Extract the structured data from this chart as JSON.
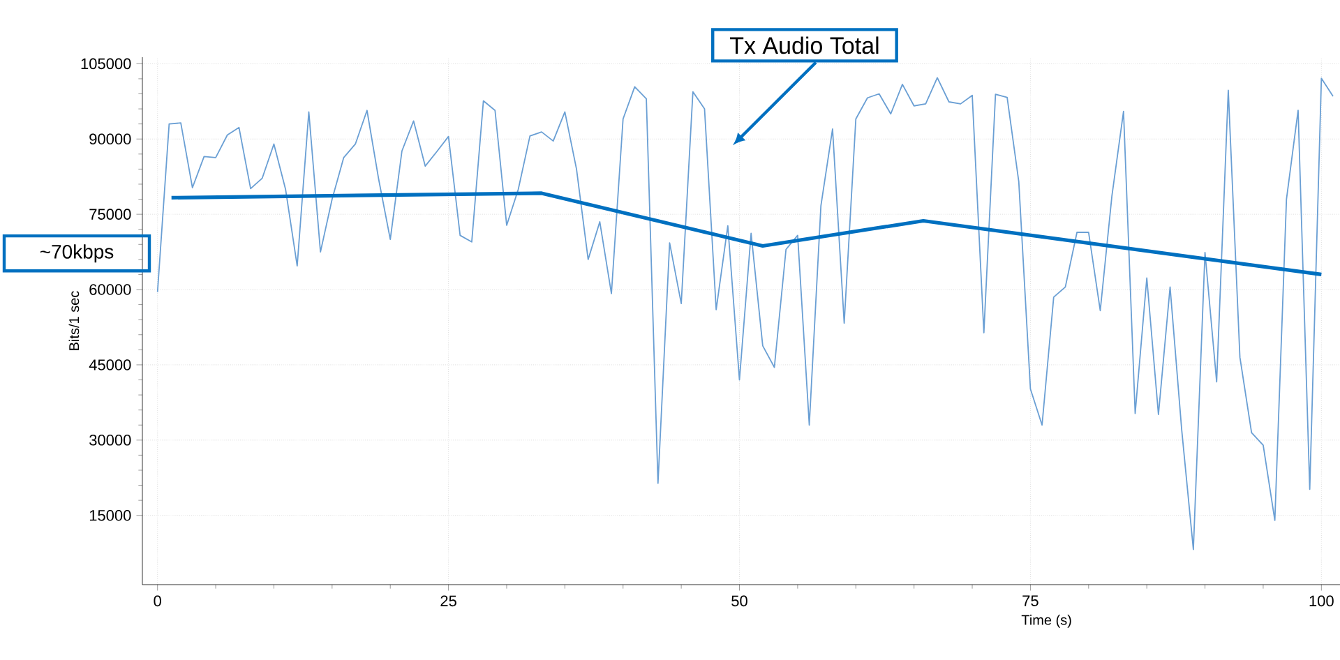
{
  "chart_data": {
    "type": "line",
    "xlabel": "Time (s)",
    "ylabel": "Bits/1 sec",
    "xlim": [
      -1.3,
      101.6
    ],
    "ylim": [
      1200,
      106300
    ],
    "xticks": [
      0,
      25,
      50,
      75,
      100
    ],
    "yticks": [
      15000,
      30000,
      45000,
      60000,
      75000,
      90000,
      105000
    ],
    "grid": true,
    "marker": "none",
    "line_style": "solid",
    "series": [
      {
        "color": "#6a9fd4",
        "x": [
          0,
          1,
          2,
          3,
          4,
          5,
          6,
          7,
          8,
          9,
          10,
          11,
          12,
          13,
          14,
          15,
          16,
          17,
          18,
          19,
          20,
          21,
          22,
          23,
          24,
          25,
          26,
          27,
          28,
          29,
          30,
          31,
          32,
          33,
          34,
          35,
          36,
          37,
          38,
          39,
          40,
          41,
          42,
          43,
          44,
          45,
          46,
          47,
          48,
          49,
          50,
          51,
          52,
          53,
          54,
          55,
          56,
          57,
          58,
          59,
          60,
          61,
          62,
          63,
          64,
          65,
          66,
          67,
          68,
          69,
          70,
          71,
          72,
          73,
          74,
          75,
          76,
          77,
          78,
          79,
          80,
          81,
          82,
          83,
          84,
          85,
          86,
          87,
          88,
          89,
          90,
          91,
          92,
          93,
          94,
          95,
          96,
          97,
          98,
          99,
          100,
          101
        ],
        "values": [
          59500,
          93000,
          93200,
          80300,
          86500,
          86300,
          90800,
          92300,
          80100,
          82200,
          89000,
          80000,
          64700,
          95400,
          67500,
          78000,
          86300,
          89000,
          95700,
          82000,
          70000,
          87600,
          93600,
          84600,
          87500,
          90500,
          70800,
          69500,
          97600,
          95700,
          72800,
          80000,
          90600,
          91400,
          89600,
          95400,
          84000,
          66000,
          73500,
          59200,
          94000,
          100400,
          98000,
          21400,
          69300,
          57200,
          99400,
          96000,
          56000,
          72700,
          42000,
          71200,
          48800,
          44500,
          68000,
          70800,
          33000,
          76700,
          92000,
          53300,
          94000,
          98200,
          99000,
          95000,
          100900,
          96600,
          97000,
          102200,
          97400,
          97000,
          98700,
          51400,
          98900,
          98300,
          81500,
          40200,
          33000,
          58500,
          60500,
          71400,
          71400,
          55800,
          78600,
          95500,
          35300,
          62300,
          35100,
          60500,
          32000,
          8200,
          67400,
          41600,
          99700,
          46500,
          31500,
          29000,
          14000,
          78000,
          95700,
          20200,
          102100,
          98500
        ]
      },
      {
        "type": "line",
        "color": "#0070c0",
        "x": [
          1.2,
          33,
          52,
          65.8,
          100
        ],
        "values": [
          78300,
          79200,
          68700,
          73700,
          63000
        ]
      }
    ],
    "annotations": [
      "Tx Audio Total",
      "~70kbps"
    ]
  }
}
